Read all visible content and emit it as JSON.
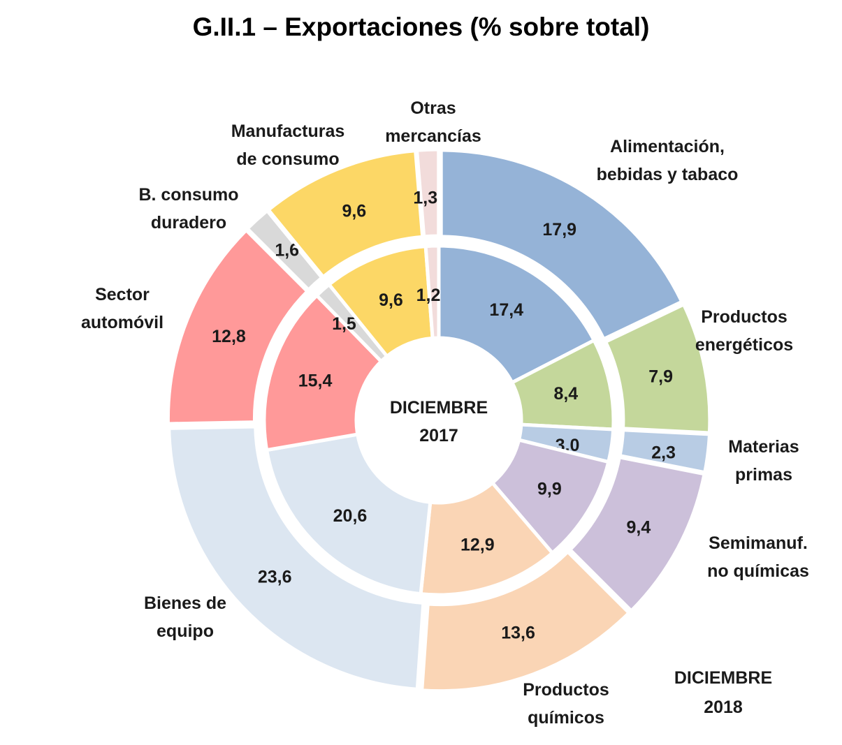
{
  "title": "G.II.1 – Exportaciones (% sobre total)",
  "center_label": [
    "DICIEMBRE",
    "2017"
  ],
  "outer_label": [
    "DICIEMBRE",
    "2018"
  ],
  "chart_data": {
    "type": "pie",
    "subtype": "double-donut",
    "title": "G.II.1 – Exportaciones (% sobre total)",
    "categories": [
      {
        "name": "Alimentación, bebidas y tabaco",
        "label": [
          "Alimentación,",
          "bebidas y tabaco"
        ],
        "color": "#95b3d7"
      },
      {
        "name": "Productos energéticos",
        "label": [
          "Productos",
          "energéticos"
        ],
        "color": "#c4d79b"
      },
      {
        "name": "Materias primas",
        "label": [
          "Materias",
          "primas"
        ],
        "color": "#b8cce4"
      },
      {
        "name": "Semimanuf. no químicas",
        "label": [
          "Semimanuf.",
          "no químicas"
        ],
        "color": "#ccc0da"
      },
      {
        "name": "Productos químicos",
        "label": [
          "Productos",
          "químicos"
        ],
        "color": "#fad5b5"
      },
      {
        "name": "Bienes de equipo",
        "label": [
          "Bienes de",
          "equipo"
        ],
        "color": "#dce6f1"
      },
      {
        "name": "Sector automóvil",
        "label": [
          "Sector",
          "automóvil"
        ],
        "color": "#ff9999"
      },
      {
        "name": "B. consumo duradero",
        "label": [
          "B. consumo",
          "duradero"
        ],
        "color": "#d9d9d9"
      },
      {
        "name": "Manufacturas de consumo",
        "label": [
          "Manufacturas",
          "de consumo"
        ],
        "color": "#fcd766"
      },
      {
        "name": "Otras mercancías",
        "label": [
          "Otras",
          "mercancías"
        ],
        "color": "#f2dcdb"
      }
    ],
    "series": [
      {
        "name": "DICIEMBRE 2017",
        "ring": "inner",
        "values": [
          17.4,
          8.4,
          3.0,
          9.9,
          12.9,
          20.6,
          15.4,
          1.5,
          9.6,
          1.2
        ],
        "labels": [
          "17,4",
          "8,4",
          "3,0",
          "9,9",
          "12,9",
          "20,6",
          "15,4",
          "1,5",
          "9,6",
          "1,2"
        ]
      },
      {
        "name": "DICIEMBRE 2018",
        "ring": "outer",
        "values": [
          17.9,
          7.9,
          2.3,
          9.4,
          13.6,
          23.6,
          12.8,
          1.6,
          9.6,
          1.3
        ],
        "labels": [
          "17,9",
          "7,9",
          "2,3",
          "9,4",
          "13,6",
          "23,6",
          "12,8",
          "1,6",
          "9,6",
          "1,3"
        ]
      }
    ]
  }
}
